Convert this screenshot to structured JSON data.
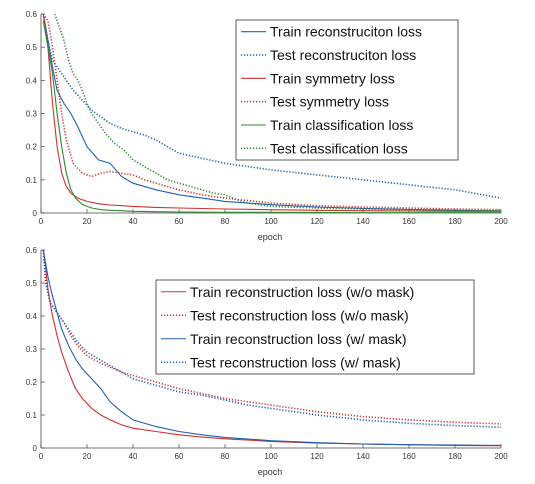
{
  "figure": {
    "panels": [
      {
        "xlabel": "epoch"
      },
      {
        "xlabel": "epoch"
      }
    ]
  },
  "chart_data": [
    {
      "type": "line",
      "title": "",
      "xlabel": "epoch",
      "ylabel": "",
      "xlim": [
        0,
        200
      ],
      "ylim": [
        0,
        0.6
      ],
      "xticks": [
        0,
        20,
        40,
        60,
        80,
        100,
        120,
        140,
        160,
        180,
        200
      ],
      "yticks": [
        0,
        0.1,
        0.2,
        0.3,
        0.4,
        0.5,
        0.6
      ],
      "grid": false,
      "legend_position": "top-right",
      "series": [
        {
          "name": "Train reconstruciton loss",
          "color": "#1f5fb4",
          "style": "solid",
          "x": [
            1,
            3,
            5,
            7,
            10,
            13,
            16,
            20,
            25,
            30,
            35,
            40,
            50,
            60,
            70,
            80,
            100,
            120,
            140,
            160,
            180,
            200
          ],
          "y": [
            0.6,
            0.52,
            0.44,
            0.37,
            0.33,
            0.3,
            0.26,
            0.2,
            0.16,
            0.15,
            0.11,
            0.09,
            0.07,
            0.055,
            0.045,
            0.035,
            0.025,
            0.018,
            0.014,
            0.011,
            0.008,
            0.006
          ]
        },
        {
          "name": "Test reconstruciton loss",
          "color": "#1f5fb4",
          "style": "dotted",
          "x": [
            1,
            3,
            5,
            8,
            10,
            14,
            18,
            22,
            26,
            30,
            35,
            40,
            45,
            50,
            55,
            60,
            70,
            80,
            90,
            100,
            120,
            140,
            160,
            180,
            200
          ],
          "y": [
            0.6,
            0.52,
            0.46,
            0.43,
            0.41,
            0.37,
            0.34,
            0.31,
            0.29,
            0.27,
            0.255,
            0.245,
            0.235,
            0.22,
            0.2,
            0.18,
            0.165,
            0.15,
            0.14,
            0.13,
            0.115,
            0.1,
            0.085,
            0.07,
            0.045
          ]
        },
        {
          "name": "Train symmetry loss",
          "color": "#d03030",
          "style": "solid",
          "x": [
            1,
            3,
            5,
            7,
            9,
            11,
            13,
            16,
            20,
            25,
            30,
            40,
            50,
            60,
            80,
            100,
            120,
            140,
            160,
            180,
            200
          ],
          "y": [
            0.6,
            0.5,
            0.33,
            0.2,
            0.12,
            0.08,
            0.06,
            0.045,
            0.035,
            0.028,
            0.024,
            0.02,
            0.017,
            0.015,
            0.012,
            0.01,
            0.008,
            0.007,
            0.006,
            0.005,
            0.005
          ]
        },
        {
          "name": "Test symmetry loss",
          "color": "#d03030",
          "style": "dotted",
          "x": [
            1,
            3,
            5,
            7,
            9,
            11,
            14,
            18,
            22,
            26,
            30,
            35,
            40,
            45,
            50,
            55,
            60,
            70,
            80,
            100,
            120,
            140,
            160,
            180,
            200
          ],
          "y": [
            0.6,
            0.58,
            0.5,
            0.4,
            0.3,
            0.22,
            0.15,
            0.12,
            0.11,
            0.12,
            0.125,
            0.12,
            0.115,
            0.1,
            0.09,
            0.08,
            0.07,
            0.055,
            0.045,
            0.03,
            0.022,
            0.018,
            0.015,
            0.012,
            0.01
          ]
        },
        {
          "name": "Train classification loss",
          "color": "#2e8a2e",
          "style": "solid",
          "x": [
            1,
            3,
            5,
            7,
            9,
            11,
            13,
            15,
            18,
            22,
            26,
            30,
            40,
            50,
            60,
            80,
            100,
            140,
            200
          ],
          "y": [
            0.58,
            0.5,
            0.42,
            0.3,
            0.2,
            0.12,
            0.07,
            0.045,
            0.025,
            0.015,
            0.01,
            0.008,
            0.005,
            0.004,
            0.003,
            0.002,
            0.002,
            0.001,
            0.001
          ]
        },
        {
          "name": "Test classification loss",
          "color": "#2e8a2e",
          "style": "dotted",
          "x": [
            6,
            8,
            10,
            12,
            14,
            16,
            18,
            20,
            22,
            25,
            28,
            32,
            36,
            40,
            45,
            50,
            55,
            60,
            65,
            70,
            75,
            80,
            85,
            90,
            100,
            120,
            140,
            160,
            180,
            200
          ],
          "y": [
            0.6,
            0.56,
            0.52,
            0.46,
            0.42,
            0.4,
            0.37,
            0.33,
            0.3,
            0.27,
            0.24,
            0.21,
            0.19,
            0.16,
            0.14,
            0.12,
            0.1,
            0.09,
            0.08,
            0.07,
            0.06,
            0.055,
            0.04,
            0.03,
            0.02,
            0.015,
            0.012,
            0.01,
            0.008,
            0.007
          ]
        }
      ]
    },
    {
      "type": "line",
      "title": "",
      "xlabel": "epoch",
      "ylabel": "",
      "xlim": [
        0,
        200
      ],
      "ylim": [
        0,
        0.6
      ],
      "xticks": [
        0,
        20,
        40,
        60,
        80,
        100,
        120,
        140,
        160,
        180,
        200
      ],
      "yticks": [
        0,
        0.1,
        0.2,
        0.3,
        0.4,
        0.5,
        0.6
      ],
      "grid": false,
      "legend_position": "top-right",
      "series": [
        {
          "name": "Train reconstruction loss (w/o mask)",
          "color": "#d03030",
          "style": "solid",
          "x": [
            1,
            2,
            3,
            5,
            7,
            9,
            12,
            15,
            18,
            22,
            26,
            30,
            35,
            40,
            50,
            60,
            70,
            80,
            100,
            120,
            140,
            160,
            180,
            200
          ],
          "y": [
            0.6,
            0.55,
            0.48,
            0.4,
            0.34,
            0.29,
            0.23,
            0.18,
            0.15,
            0.12,
            0.1,
            0.085,
            0.07,
            0.06,
            0.05,
            0.04,
            0.033,
            0.028,
            0.02,
            0.015,
            0.012,
            0.01,
            0.008,
            0.007
          ]
        },
        {
          "name": "Test reconstruction loss (w/o mask)",
          "color": "#d03030",
          "style": "dotted",
          "x": [
            1,
            2,
            4,
            6,
            8,
            10,
            13,
            16,
            20,
            25,
            30,
            35,
            40,
            45,
            50,
            60,
            70,
            80,
            90,
            100,
            120,
            140,
            160,
            180,
            200
          ],
          "y": [
            0.6,
            0.53,
            0.44,
            0.42,
            0.4,
            0.38,
            0.34,
            0.31,
            0.28,
            0.26,
            0.245,
            0.23,
            0.22,
            0.21,
            0.2,
            0.18,
            0.165,
            0.15,
            0.14,
            0.13,
            0.11,
            0.095,
            0.085,
            0.078,
            0.073
          ]
        },
        {
          "name": "Train reconstruction loss (w/ mask)",
          "color": "#1f5fb4",
          "style": "solid",
          "x": [
            1,
            2,
            3,
            5,
            7,
            9,
            12,
            15,
            18,
            22,
            26,
            30,
            35,
            40,
            50,
            60,
            70,
            80,
            100,
            120,
            140,
            160,
            180,
            200
          ],
          "y": [
            0.6,
            0.56,
            0.52,
            0.46,
            0.41,
            0.36,
            0.31,
            0.27,
            0.24,
            0.21,
            0.18,
            0.14,
            0.11,
            0.085,
            0.065,
            0.05,
            0.04,
            0.032,
            0.022,
            0.016,
            0.012,
            0.01,
            0.009,
            0.008
          ]
        },
        {
          "name": "Test reconstruction loss (w/ mask)",
          "color": "#1f5fb4",
          "style": "dotted",
          "x": [
            1,
            2,
            4,
            6,
            8,
            10,
            13,
            16,
            20,
            25,
            30,
            35,
            40,
            45,
            50,
            60,
            70,
            80,
            90,
            100,
            120,
            140,
            160,
            180,
            200
          ],
          "y": [
            0.6,
            0.5,
            0.44,
            0.42,
            0.4,
            0.38,
            0.35,
            0.32,
            0.29,
            0.27,
            0.25,
            0.23,
            0.21,
            0.2,
            0.19,
            0.17,
            0.16,
            0.145,
            0.13,
            0.12,
            0.1,
            0.085,
            0.075,
            0.068,
            0.063
          ]
        }
      ]
    }
  ]
}
